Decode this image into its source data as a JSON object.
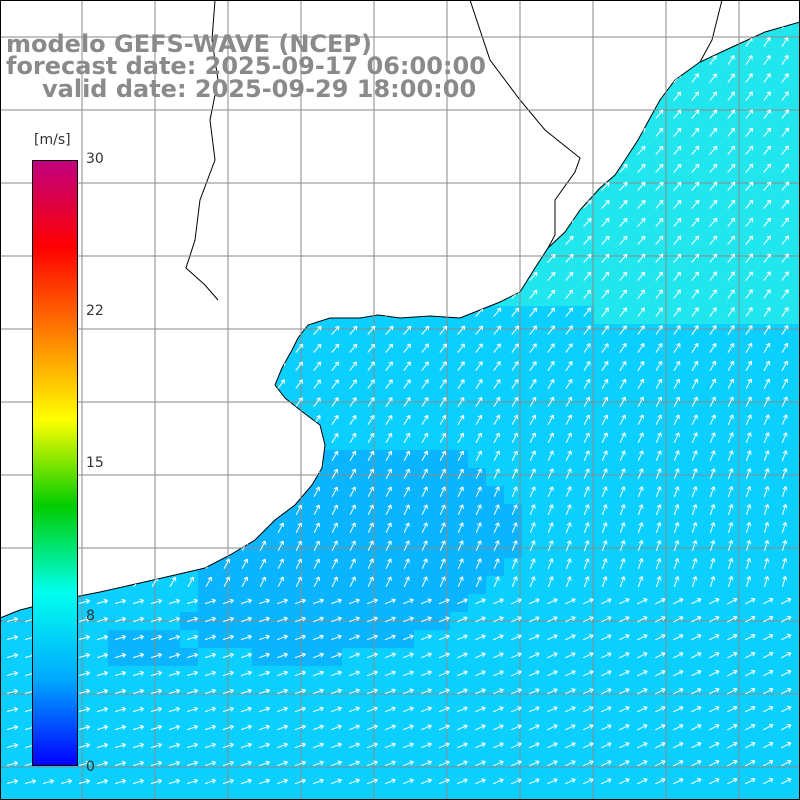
{
  "title": {
    "line1": "modelo GEFS-WAVE (NCEP)",
    "line2": "forecast date: 2025-09-17 06:00:00",
    "line3": "valid date: 2025-09-29 18:00:00"
  },
  "colorbar": {
    "unit": "[m/s]",
    "ticks": [
      "30",
      "22",
      "15",
      "8",
      "0"
    ],
    "min": 0,
    "max": 30,
    "colors": [
      "#0000ff",
      "#00aaff",
      "#00ffee",
      "#00cc00",
      "#ffff00",
      "#ff7f00",
      "#ff0000",
      "#c0007f"
    ]
  },
  "map": {
    "field": "wind speed (m/s) with direction arrows",
    "ocean_colors": [
      "#0a55ff",
      "#0a88ff",
      "#0bb4ff",
      "#0bd0ff",
      "#22e6ee"
    ],
    "land_color": "#ffffff",
    "coast_color": "#000000",
    "arrow_color": "#ffffff"
  }
}
